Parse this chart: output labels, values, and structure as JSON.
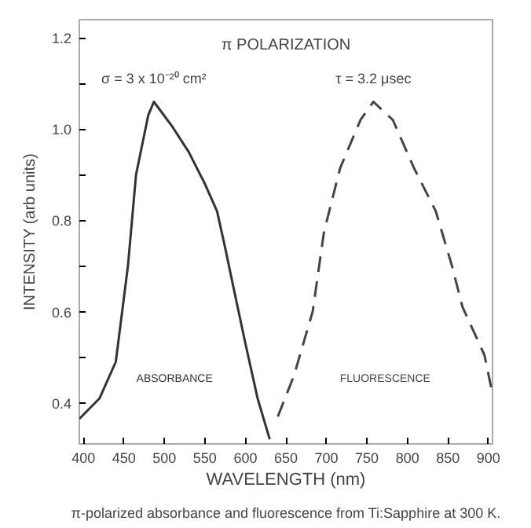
{
  "chart_data": {
    "type": "line",
    "title": "π POLARIZATION",
    "xlabel": "WAVELENGTH (nm)",
    "ylabel": "INTENSITY (arb units)",
    "xlim": [
      395,
      905
    ],
    "ylim": [
      0.31,
      1.24
    ],
    "xticks": [
      400,
      450,
      500,
      550,
      600,
      650,
      700,
      750,
      800,
      850,
      900
    ],
    "yticks": [
      {
        "value": 0.4,
        "label": "0.4"
      },
      {
        "value": 0.5,
        "label": null
      },
      {
        "value": 0.6,
        "label": "0.6"
      },
      {
        "value": 0.7,
        "label": null
      },
      {
        "value": 0.8,
        "label": "0.8"
      },
      {
        "value": 0.9,
        "label": null
      },
      {
        "value": 1.0,
        "label": "1.0"
      },
      {
        "value": 1.1,
        "label": null
      },
      {
        "value": 1.2,
        "label": "1.2"
      }
    ],
    "grid": false,
    "marker": "none",
    "series": [
      {
        "name": "ABSORBANCE",
        "color": "#333333",
        "line_style": "solid",
        "x": [
          395,
          420,
          440,
          455,
          465,
          480,
          487,
          510,
          530,
          550,
          565,
          575,
          585,
          600,
          615,
          630
        ],
        "values": [
          0.365,
          0.41,
          0.49,
          0.7,
          0.9,
          1.03,
          1.06,
          1.005,
          0.95,
          0.88,
          0.82,
          0.74,
          0.655,
          0.53,
          0.41,
          0.32
        ]
      },
      {
        "name": "FLUORESCENCE",
        "color": "#444444",
        "line_style": "dashed",
        "x": [
          640,
          660,
          683,
          697,
          717,
          742,
          758,
          782,
          808,
          835,
          855,
          868,
          895,
          905
        ],
        "values": [
          0.37,
          0.46,
          0.6,
          0.775,
          0.915,
          1.02,
          1.06,
          1.02,
          0.915,
          0.82,
          0.7,
          0.61,
          0.505,
          0.42
        ]
      }
    ],
    "annotations": [
      {
        "text": "σ = 3 x 10⁻²⁰ cm²",
        "x": 487,
        "y": 1.06
      },
      {
        "text": "τ = 3.2 μsec",
        "x": 758,
        "y": 1.06
      },
      "π-polarized absorbance and fluorescence from Ti:Sapphire at 300 K."
    ]
  }
}
